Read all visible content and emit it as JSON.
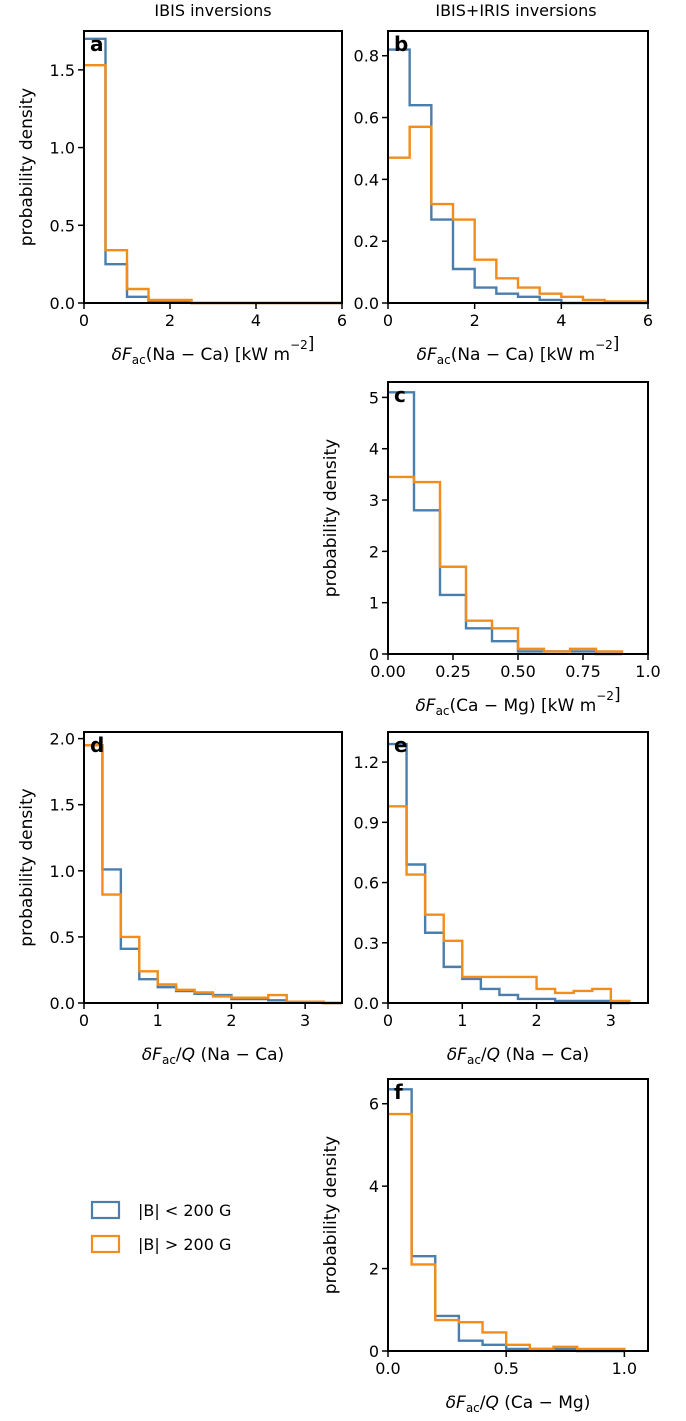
{
  "colors": {
    "low": "#4a7fad",
    "high": "#f28c1a",
    "axis": "#000000"
  },
  "column_titles": [
    "IBIS inversions",
    "IBIS+IRIS inversions"
  ],
  "ylabel": "probability density",
  "legend": [
    {
      "label": "|B| < 200 G",
      "series": "low"
    },
    {
      "label": "|B| > 200 G",
      "series": "high"
    }
  ],
  "chart_data": [
    {
      "panel": "a",
      "type": "histogram",
      "xlabel": "δF_ac(Na − Ca) [kW m⁻²]",
      "xlim": [
        0,
        6
      ],
      "ylim": [
        0,
        1.75
      ],
      "xticks": [
        0,
        2,
        4,
        6
      ],
      "yticks": [
        0.0,
        0.5,
        1.0,
        1.5
      ],
      "xtick_labels": [
        "0",
        "2",
        "4",
        "6"
      ],
      "ytick_labels": [
        "0.0",
        "0.5",
        "1.0",
        "1.5"
      ],
      "bin_width": 0.5,
      "series": [
        {
          "name": "|B| < 200 G",
          "key": "low",
          "values": [
            1.7,
            0.25,
            0.04,
            0.01,
            0.01,
            0.0,
            0.0,
            0.0,
            0.0,
            0.0,
            0.0,
            0.0
          ]
        },
        {
          "name": "|B| > 200 G",
          "key": "high",
          "values": [
            1.53,
            0.34,
            0.09,
            0.02,
            0.02,
            0.0,
            0.0,
            0.0,
            0.0,
            0.0,
            0.0,
            0.0
          ]
        }
      ]
    },
    {
      "panel": "b",
      "type": "histogram",
      "xlabel": "δF_ac(Na − Ca) [kW m⁻²]",
      "xlim": [
        0,
        6
      ],
      "ylim": [
        0,
        0.88
      ],
      "xticks": [
        0,
        2,
        4,
        6
      ],
      "yticks": [
        0.0,
        0.2,
        0.4,
        0.6,
        0.8
      ],
      "xtick_labels": [
        "0",
        "2",
        "4",
        "6"
      ],
      "ytick_labels": [
        "0.0",
        "0.2",
        "0.4",
        "0.6",
        "0.8"
      ],
      "bin_width": 0.5,
      "series": [
        {
          "name": "|B| < 200 G",
          "key": "low",
          "values": [
            0.82,
            0.64,
            0.27,
            0.11,
            0.05,
            0.03,
            0.02,
            0.01,
            0.0,
            0.0,
            0.0,
            0.0
          ]
        },
        {
          "name": "|B| > 200 G",
          "key": "high",
          "values": [
            0.47,
            0.57,
            0.32,
            0.27,
            0.14,
            0.08,
            0.05,
            0.03,
            0.02,
            0.01,
            0.005,
            0.005
          ]
        }
      ]
    },
    {
      "panel": "c",
      "type": "histogram",
      "xlabel": "δF_ac(Ca − Mg) [kW m⁻²]",
      "xlim": [
        0,
        1.0
      ],
      "ylim": [
        0,
        5.3
      ],
      "xticks": [
        0,
        0.25,
        0.5,
        0.75,
        1.0
      ],
      "yticks": [
        0,
        1,
        2,
        3,
        4,
        5
      ],
      "xtick_labels": [
        "0.00",
        "0.25",
        "0.50",
        "0.75",
        "1.0"
      ],
      "ytick_labels": [
        "0",
        "1",
        "2",
        "3",
        "4",
        "5"
      ],
      "bin_width": 0.1,
      "series": [
        {
          "name": "|B| < 200 G",
          "key": "low",
          "values": [
            5.1,
            2.8,
            1.15,
            0.5,
            0.25,
            0.05,
            0.05,
            0.05,
            0.0
          ]
        },
        {
          "name": "|B| > 200 G",
          "key": "high",
          "values": [
            3.45,
            3.35,
            1.7,
            0.65,
            0.5,
            0.1,
            0.05,
            0.1,
            0.05
          ]
        }
      ]
    },
    {
      "panel": "d",
      "type": "histogram",
      "xlabel": "δF_ac/Q (Na − Ca)",
      "xlim": [
        0,
        3.5
      ],
      "ylim": [
        0,
        2.05
      ],
      "xticks": [
        0,
        1,
        2,
        3
      ],
      "yticks": [
        0.0,
        0.5,
        1.0,
        1.5,
        2.0
      ],
      "xtick_labels": [
        "0",
        "1",
        "2",
        "3"
      ],
      "ytick_labels": [
        "0.0",
        "0.5",
        "1.0",
        "1.5",
        "2.0"
      ],
      "bin_width": 0.25,
      "series": [
        {
          "name": "|B| < 200 G",
          "key": "low",
          "values": [
            1.95,
            1.01,
            0.41,
            0.18,
            0.12,
            0.09,
            0.07,
            0.06,
            0.03,
            0.03,
            0.02,
            0.01,
            0.01,
            0.0
          ]
        },
        {
          "name": "|B| > 200 G",
          "key": "high",
          "values": [
            1.95,
            0.82,
            0.5,
            0.24,
            0.14,
            0.1,
            0.08,
            0.05,
            0.04,
            0.04,
            0.06,
            0.01,
            0.01,
            0.0
          ]
        }
      ]
    },
    {
      "panel": "e",
      "type": "histogram",
      "xlabel": "δF_ac/Q (Na − Ca)",
      "xlim": [
        0,
        3.5
      ],
      "ylim": [
        0,
        1.35
      ],
      "xticks": [
        0,
        1,
        2,
        3
      ],
      "yticks": [
        0.0,
        0.3,
        0.6,
        0.9,
        1.2
      ],
      "xtick_labels": [
        "0",
        "1",
        "2",
        "3"
      ],
      "ytick_labels": [
        "0.0",
        "0.3",
        "0.6",
        "0.9",
        "1.2"
      ],
      "bin_width": 0.25,
      "series": [
        {
          "name": "|B| < 200 G",
          "key": "low",
          "values": [
            1.29,
            0.69,
            0.35,
            0.18,
            0.12,
            0.07,
            0.04,
            0.02,
            0.02,
            0.01,
            0.01,
            0.01,
            0.0
          ]
        },
        {
          "name": "|B| > 200 G",
          "key": "high",
          "values": [
            0.98,
            0.64,
            0.44,
            0.31,
            0.13,
            0.13,
            0.13,
            0.13,
            0.07,
            0.05,
            0.06,
            0.07,
            0.01
          ]
        }
      ]
    },
    {
      "panel": "f",
      "type": "histogram",
      "xlabel": "δF_ac/Q (Ca − Mg)",
      "xlim": [
        0,
        1.1
      ],
      "ylim": [
        0,
        6.6
      ],
      "xticks": [
        0,
        0.5,
        1.0
      ],
      "yticks": [
        0,
        2,
        4,
        6
      ],
      "xtick_labels": [
        "0.0",
        "0.5",
        "1.0"
      ],
      "ytick_labels": [
        "0",
        "2",
        "4",
        "6"
      ],
      "bin_width": 0.1,
      "series": [
        {
          "name": "|B| < 200 G",
          "key": "low",
          "values": [
            6.35,
            2.3,
            0.85,
            0.25,
            0.15,
            0.05,
            0.05,
            0.05,
            0.0,
            0.0
          ]
        },
        {
          "name": "|B| > 200 G",
          "key": "high",
          "values": [
            5.75,
            2.1,
            0.75,
            0.7,
            0.45,
            0.15,
            0.05,
            0.1,
            0.05,
            0.05
          ]
        }
      ]
    }
  ]
}
